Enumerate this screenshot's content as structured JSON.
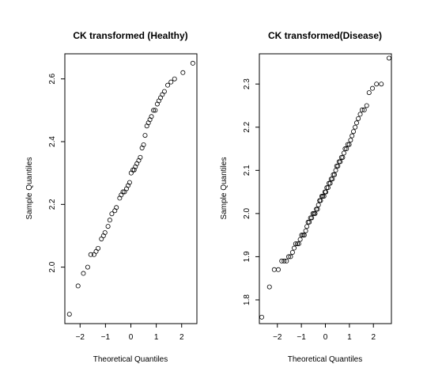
{
  "chart_data": [
    {
      "type": "scatter",
      "title": "CK transformed (Healthy)",
      "xlabel": "Theoretical Quantiles",
      "ylabel": "Sample Quantiles",
      "xlim": [
        -2.6,
        2.6
      ],
      "ylim": [
        1.82,
        2.68
      ],
      "xticks": [
        -2,
        -1,
        0,
        1,
        2
      ],
      "xtick_labels": [
        "−2",
        "−1",
        "0",
        "1",
        "2"
      ],
      "yticks": [
        2.0,
        2.2,
        2.4,
        2.6
      ],
      "ytick_labels": [
        "2.0",
        "2.2",
        "2.4",
        "2.6"
      ],
      "grid": false,
      "points": [
        [
          -2.42,
          1.85
        ],
        [
          -2.08,
          1.94
        ],
        [
          -1.87,
          1.98
        ],
        [
          -1.7,
          2.0
        ],
        [
          -1.58,
          2.04
        ],
        [
          -1.45,
          2.04
        ],
        [
          -1.37,
          2.05
        ],
        [
          -1.29,
          2.06
        ],
        [
          -1.16,
          2.09
        ],
        [
          -1.08,
          2.1
        ],
        [
          -1.02,
          2.11
        ],
        [
          -0.9,
          2.13
        ],
        [
          -0.83,
          2.15
        ],
        [
          -0.75,
          2.17
        ],
        [
          -0.63,
          2.18
        ],
        [
          -0.57,
          2.19
        ],
        [
          -0.44,
          2.22
        ],
        [
          -0.38,
          2.23
        ],
        [
          -0.31,
          2.24
        ],
        [
          -0.25,
          2.24
        ],
        [
          -0.17,
          2.25
        ],
        [
          -0.11,
          2.26
        ],
        [
          -0.05,
          2.27
        ],
        [
          0.01,
          2.3
        ],
        [
          0.08,
          2.31
        ],
        [
          0.13,
          2.31
        ],
        [
          0.18,
          2.32
        ],
        [
          0.24,
          2.33
        ],
        [
          0.31,
          2.34
        ],
        [
          0.37,
          2.35
        ],
        [
          0.44,
          2.38
        ],
        [
          0.5,
          2.39
        ],
        [
          0.56,
          2.42
        ],
        [
          0.63,
          2.45
        ],
        [
          0.69,
          2.46
        ],
        [
          0.75,
          2.47
        ],
        [
          0.81,
          2.48
        ],
        [
          0.89,
          2.5
        ],
        [
          0.96,
          2.5
        ],
        [
          1.04,
          2.52
        ],
        [
          1.1,
          2.53
        ],
        [
          1.17,
          2.54
        ],
        [
          1.24,
          2.55
        ],
        [
          1.32,
          2.56
        ],
        [
          1.45,
          2.58
        ],
        [
          1.58,
          2.59
        ],
        [
          1.72,
          2.6
        ],
        [
          2.05,
          2.62
        ],
        [
          2.44,
          2.65
        ]
      ]
    },
    {
      "type": "scatter",
      "title": "CK transformed(Disease)",
      "xlabel": "Theoretical Quantiles",
      "ylabel": "Sample Quantiles",
      "xlim": [
        -2.75,
        2.75
      ],
      "ylim": [
        1.745,
        2.37
      ],
      "xticks": [
        -2,
        -1,
        0,
        1,
        2
      ],
      "xtick_labels": [
        "−2",
        "−1",
        "0",
        "1",
        "2"
      ],
      "yticks": [
        1.8,
        1.9,
        2.0,
        2.1,
        2.2,
        2.3
      ],
      "ytick_labels": [
        "1.8",
        "1.9",
        "2.0",
        "2.1",
        "2.2",
        "2.3"
      ],
      "grid": false,
      "points": [
        [
          -2.65,
          1.76
        ],
        [
          -2.33,
          1.83
        ],
        [
          -2.13,
          1.87
        ],
        [
          -1.96,
          1.87
        ],
        [
          -1.82,
          1.89
        ],
        [
          -1.72,
          1.89
        ],
        [
          -1.62,
          1.89
        ],
        [
          -1.53,
          1.9
        ],
        [
          -1.45,
          1.9
        ],
        [
          -1.37,
          1.91
        ],
        [
          -1.3,
          1.92
        ],
        [
          -1.24,
          1.93
        ],
        [
          -1.17,
          1.93
        ],
        [
          -1.11,
          1.93
        ],
        [
          -1.05,
          1.94
        ],
        [
          -0.99,
          1.95
        ],
        [
          -0.93,
          1.95
        ],
        [
          -0.88,
          1.95
        ],
        [
          -0.82,
          1.96
        ],
        [
          -0.77,
          1.97
        ],
        [
          -0.72,
          1.98
        ],
        [
          -0.67,
          1.98
        ],
        [
          -0.62,
          1.99
        ],
        [
          -0.57,
          1.99
        ],
        [
          -0.52,
          2.0
        ],
        [
          -0.47,
          2.0
        ],
        [
          -0.43,
          2.0
        ],
        [
          -0.38,
          2.01
        ],
        [
          -0.33,
          2.01
        ],
        [
          -0.29,
          2.02
        ],
        [
          -0.24,
          2.03
        ],
        [
          -0.2,
          2.03
        ],
        [
          -0.15,
          2.04
        ],
        [
          -0.11,
          2.04
        ],
        [
          -0.06,
          2.04
        ],
        [
          -0.02,
          2.05
        ],
        [
          0.02,
          2.05
        ],
        [
          0.06,
          2.06
        ],
        [
          0.11,
          2.06
        ],
        [
          0.15,
          2.07
        ],
        [
          0.2,
          2.07
        ],
        [
          0.24,
          2.08
        ],
        [
          0.29,
          2.08
        ],
        [
          0.33,
          2.09
        ],
        [
          0.38,
          2.09
        ],
        [
          0.43,
          2.1
        ],
        [
          0.47,
          2.11
        ],
        [
          0.52,
          2.11
        ],
        [
          0.57,
          2.12
        ],
        [
          0.62,
          2.12
        ],
        [
          0.67,
          2.13
        ],
        [
          0.72,
          2.13
        ],
        [
          0.77,
          2.14
        ],
        [
          0.82,
          2.15
        ],
        [
          0.88,
          2.15
        ],
        [
          0.93,
          2.16
        ],
        [
          0.99,
          2.16
        ],
        [
          1.05,
          2.17
        ],
        [
          1.11,
          2.18
        ],
        [
          1.17,
          2.19
        ],
        [
          1.24,
          2.2
        ],
        [
          1.3,
          2.21
        ],
        [
          1.37,
          2.22
        ],
        [
          1.45,
          2.23
        ],
        [
          1.53,
          2.24
        ],
        [
          1.62,
          2.24
        ],
        [
          1.72,
          2.25
        ],
        [
          1.82,
          2.28
        ],
        [
          1.96,
          2.29
        ],
        [
          2.13,
          2.3
        ],
        [
          2.33,
          2.3
        ],
        [
          2.65,
          2.36
        ]
      ]
    }
  ]
}
